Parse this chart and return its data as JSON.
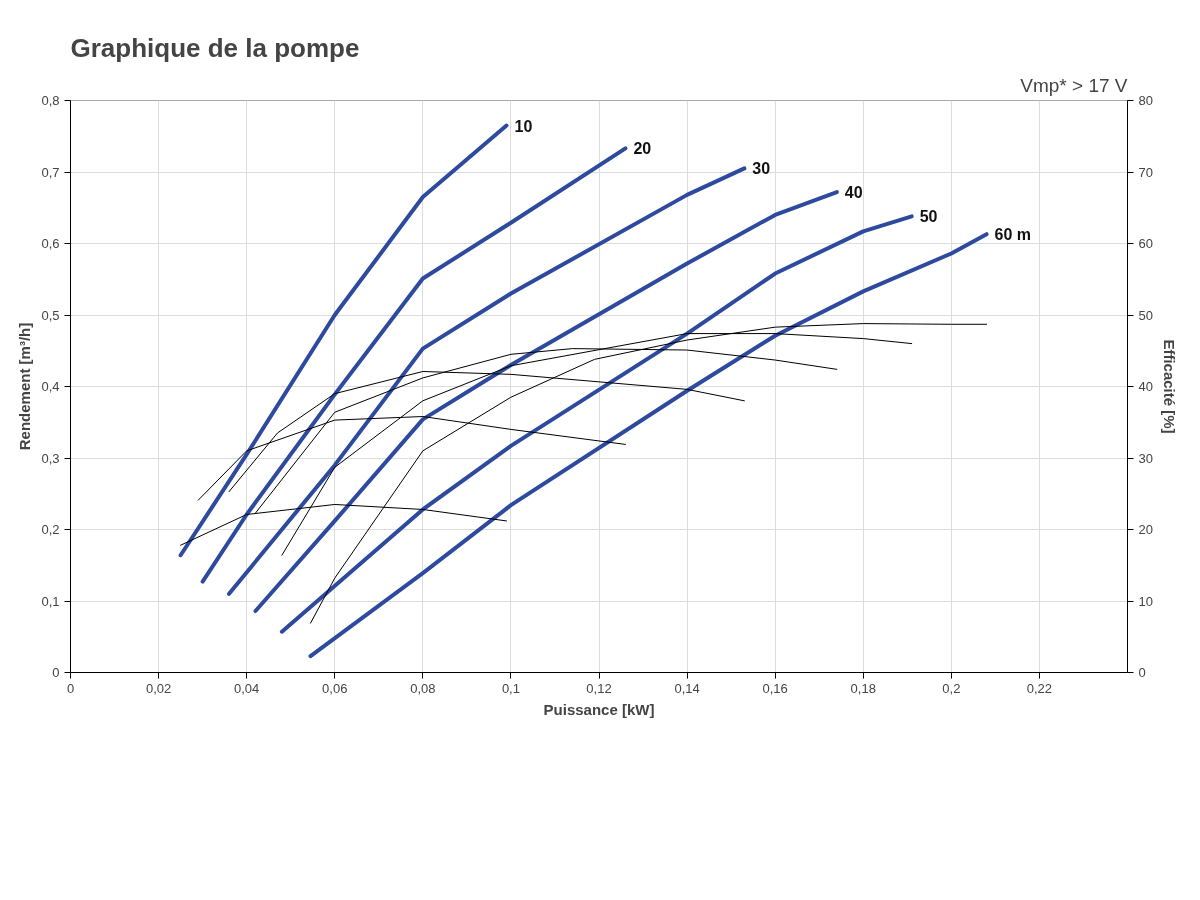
{
  "chart_data": {
    "type": "line",
    "title": "Graphique de la pompe",
    "annotations": [
      "Vmp* > 17 V"
    ],
    "xlabel": "Puissance [kW]",
    "ylabel": "Rendement [m³/h]",
    "y2label": "Efficacité [%]",
    "xlim": [
      0,
      0.24
    ],
    "ylim": [
      0,
      0.8
    ],
    "y2lim": [
      0,
      80
    ],
    "xticks": [
      0,
      {
        "value": 0.02,
        "label": "0,02"
      },
      {
        "value": 0.04,
        "label": "0,04"
      },
      {
        "value": 0.06,
        "label": "0,06"
      },
      {
        "value": 0.08,
        "label": "0,08"
      },
      {
        "value": 0.1,
        "label": "0,1"
      },
      {
        "value": 0.12,
        "label": "0,12"
      },
      {
        "value": 0.14,
        "label": "0,14"
      },
      {
        "value": 0.16,
        "label": "0,16"
      },
      {
        "value": 0.18,
        "label": "0,18"
      },
      {
        "value": 0.2,
        "label": "0,2"
      },
      {
        "value": 0.22,
        "label": "0,22"
      }
    ],
    "yticks": [
      0,
      {
        "value": 0.1,
        "label": "0,1"
      },
      {
        "value": 0.2,
        "label": "0,2"
      },
      {
        "value": 0.3,
        "label": "0,3"
      },
      {
        "value": 0.4,
        "label": "0,4"
      },
      {
        "value": 0.5,
        "label": "0,5"
      },
      {
        "value": 0.6,
        "label": "0,6"
      },
      {
        "value": 0.7,
        "label": "0,7"
      },
      {
        "value": 0.8,
        "label": "0,8"
      }
    ],
    "y2ticks": [
      0,
      10,
      20,
      30,
      40,
      50,
      60,
      70,
      80
    ],
    "grid": true,
    "marker": "none",
    "line_style": "solid",
    "series": [
      {
        "name": "10",
        "color": "#2e4a9e",
        "x": [
          0.025,
          0.04,
          0.06,
          0.08,
          0.099
        ],
        "values": [
          0.164,
          0.305,
          0.5,
          0.665,
          0.765
        ]
      },
      {
        "name": "20",
        "color": "#2e4a9e",
        "x": [
          0.03,
          0.04,
          0.06,
          0.08,
          0.1,
          0.126
        ],
        "values": [
          0.127,
          0.221,
          0.389,
          0.551,
          0.629,
          0.733
        ]
      },
      {
        "name": "30",
        "color": "#2e4a9e",
        "x": [
          0.036,
          0.06,
          0.08,
          0.1,
          0.14,
          0.153
        ],
        "values": [
          0.11,
          0.29,
          0.453,
          0.53,
          0.668,
          0.705
        ]
      },
      {
        "name": "40",
        "color": "#2e4a9e",
        "x": [
          0.042,
          0.06,
          0.08,
          0.1,
          0.14,
          0.16,
          0.174
        ],
        "values": [
          0.086,
          0.212,
          0.354,
          0.43,
          0.572,
          0.64,
          0.672
        ]
      },
      {
        "name": "50",
        "color": "#2e4a9e",
        "x": [
          0.048,
          0.08,
          0.1,
          0.14,
          0.16,
          0.18,
          0.191
        ],
        "values": [
          0.057,
          0.228,
          0.317,
          0.474,
          0.558,
          0.617,
          0.638
        ]
      },
      {
        "name": "60 m",
        "color": "#2e4a9e",
        "x": [
          0.0545,
          0.08,
          0.1,
          0.14,
          0.16,
          0.18,
          0.2,
          0.208
        ],
        "values": [
          0.023,
          0.139,
          0.234,
          0.394,
          0.471,
          0.533,
          0.586,
          0.613
        ]
      },
      {
        "color": "#000000",
        "axis": "y2",
        "x": [
          0.025,
          0.04,
          0.06,
          0.08,
          0.099
        ],
        "values": [
          17.8,
          22.1,
          23.5,
          22.8,
          21.2
        ]
      },
      {
        "color": "#000000",
        "axis": "y2",
        "x": [
          0.029,
          0.04,
          0.06,
          0.08,
          0.1,
          0.126
        ],
        "values": [
          24.1,
          31.0,
          35.3,
          35.8,
          34.0,
          31.9
        ]
      },
      {
        "color": "#000000",
        "axis": "y2",
        "x": [
          0.036,
          0.047,
          0.06,
          0.08,
          0.1,
          0.14,
          0.153
        ],
        "values": [
          25.3,
          33.5,
          39.0,
          42.1,
          41.7,
          39.6,
          38.0
        ]
      },
      {
        "color": "#000000",
        "axis": "y2",
        "x": [
          0.042,
          0.06,
          0.08,
          0.1,
          0.114,
          0.14,
          0.16,
          0.174
        ],
        "values": [
          22.3,
          36.4,
          41.2,
          44.5,
          45.3,
          45.1,
          43.7,
          42.4
        ]
      },
      {
        "color": "#000000",
        "axis": "y2",
        "x": [
          0.048,
          0.06,
          0.08,
          0.1,
          0.14,
          0.16,
          0.18,
          0.191
        ],
        "values": [
          16.4,
          28.7,
          38.0,
          42.9,
          47.4,
          47.4,
          46.7,
          46.0
        ]
      },
      {
        "color": "#000000",
        "axis": "y2",
        "x": [
          0.0545,
          0.06,
          0.08,
          0.1,
          0.119,
          0.14,
          0.16,
          0.18,
          0.2,
          0.208
        ],
        "values": [
          6.9,
          13.2,
          31.0,
          38.5,
          43.8,
          46.5,
          48.3,
          48.8,
          48.7,
          48.7
        ]
      }
    ]
  }
}
